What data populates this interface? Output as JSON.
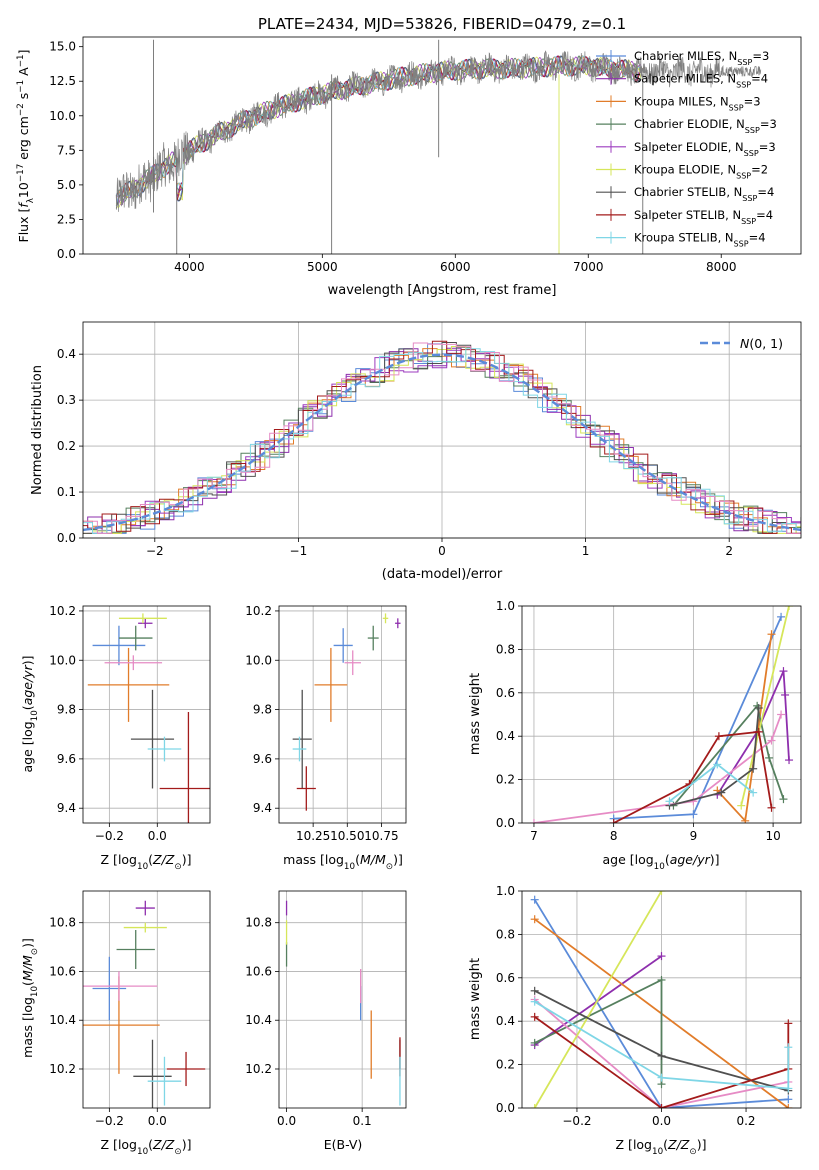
{
  "chart_data": [
    {
      "type": "line",
      "title": "PLATE=2434, MJD=53826, FIBERID=0479, z=0.1",
      "xlabel": "wavelength [Angstrom, rest frame]",
      "ylabel": "Flux [f_λ 10^-17 erg cm^-2 s^-1 A^-1]",
      "xlim": [
        3200,
        8600
      ],
      "ylim": [
        0,
        15.7
      ],
      "xticks": [
        4000,
        5000,
        6000,
        7000,
        8000
      ],
      "yticks": [
        0.0,
        2.5,
        5.0,
        7.5,
        10.0,
        12.5,
        15.0
      ],
      "legend_position": "upper right",
      "spectrum_shape": {
        "x": [
          3450,
          3600,
          3800,
          4000,
          4200,
          4400,
          4600,
          4800,
          5000,
          5200,
          5400,
          5600,
          5800,
          6000,
          6200,
          6400,
          6600,
          6800,
          7000,
          7200,
          7400
        ],
        "y": [
          4.0,
          4.8,
          6.2,
          7.5,
          8.6,
          9.6,
          10.4,
          11.0,
          11.6,
          12.0,
          12.4,
          12.8,
          13.1,
          13.3,
          13.4,
          13.4,
          13.5,
          13.6,
          13.6,
          13.4,
          13.2
        ]
      },
      "data_spectrum_color": "#808080",
      "series": [
        {
          "name": "Chabrier MILES, N_SSP=3",
          "color": "#5b8bd9"
        },
        {
          "name": "Salpeter MILES, N_SSP=4",
          "color": "#8e2fad"
        },
        {
          "name": "Kroupa MILES, N_SSP=3",
          "color": "#e17c2a"
        },
        {
          "name": "Chabrier ELODIE, N_SSP=3",
          "color": "#56805f"
        },
        {
          "name": "Salpeter ELODIE, N_SSP=3",
          "color": "#9c3bbf"
        },
        {
          "name": "Kroupa ELODIE, N_SSP=2",
          "color": "#d6e65a"
        },
        {
          "name": "Chabrier STELIB, N_SSP=4",
          "color": "#505050"
        },
        {
          "name": "Salpeter STELIB, N_SSP=4",
          "color": "#a31b1b"
        },
        {
          "name": "Kroupa STELIB, N_SSP=4",
          "color": "#7fd6e6"
        }
      ]
    },
    {
      "type": "line",
      "xlabel": "(data-model)/error",
      "ylabel": "Normed distribution",
      "xlim": [
        -2.5,
        2.5
      ],
      "ylim": [
        0,
        0.47
      ],
      "xticks": [
        -2,
        -1,
        0,
        1,
        2
      ],
      "yticks": [
        0.0,
        0.1,
        0.2,
        0.3,
        0.4
      ],
      "grid": true,
      "legend_position": "upper right",
      "legend": "N(0,1)",
      "gaussian_color": "#5b8bd9"
    },
    {
      "type": "scatter",
      "xlabel": "Z [log10(Z/Z⊙)]",
      "ylabel": "age  [log10(age/yr)]",
      "xlim": [
        -0.31,
        0.22
      ],
      "ylim": [
        9.34,
        10.22
      ],
      "xticks": [
        -0.2,
        0.0
      ],
      "yticks": [
        9.4,
        9.6,
        9.8,
        10.0,
        10.2
      ],
      "grid": true,
      "points": [
        {
          "x": -0.16,
          "xerr": 0.11,
          "y": 10.06,
          "yerr": 0.08,
          "color": "#5b8bd9"
        },
        {
          "x": -0.05,
          "xerr": 0.03,
          "y": 10.15,
          "yerr": 0.02,
          "color": "#8e2fad"
        },
        {
          "x": -0.12,
          "xerr": 0.17,
          "y": 9.9,
          "yerr": 0.15,
          "color": "#e17c2a"
        },
        {
          "x": -0.09,
          "xerr": 0.07,
          "y": 10.09,
          "yerr": 0.05,
          "color": "#56805f"
        },
        {
          "x": -0.1,
          "xerr": 0.12,
          "y": 9.99,
          "yerr": 0.03,
          "color": "#e68bc5"
        },
        {
          "x": -0.06,
          "xerr": 0.1,
          "y": 10.17,
          "yerr": 0.02,
          "color": "#d6e65a"
        },
        {
          "x": -0.02,
          "xerr": 0.09,
          "y": 9.68,
          "yerr": 0.2,
          "color": "#505050"
        },
        {
          "x": 0.13,
          "xerr": 0.12,
          "y": 9.48,
          "yerr": 0.31,
          "color": "#a31b1b"
        },
        {
          "x": 0.03,
          "xerr": 0.07,
          "y": 9.64,
          "yerr": 0.05,
          "color": "#7fd6e6"
        }
      ]
    },
    {
      "type": "scatter",
      "xlabel": "mass [log10(M/M⊙)]",
      "xlim": [
        10.0,
        10.93
      ],
      "ylim": [
        9.34,
        10.22
      ],
      "xticks": [
        10.25,
        10.5,
        10.75
      ],
      "yticks": [
        9.4,
        9.6,
        9.8,
        10.0,
        10.2
      ],
      "grid": true,
      "points": [
        {
          "x": 10.47,
          "xerr": 0.07,
          "y": 10.06,
          "yerr": 0.07,
          "color": "#5b8bd9"
        },
        {
          "x": 10.87,
          "xerr": 0.02,
          "y": 10.15,
          "yerr": 0.02,
          "color": "#8e2fad"
        },
        {
          "x": 10.38,
          "xerr": 0.12,
          "y": 9.9,
          "yerr": 0.15,
          "color": "#e17c2a"
        },
        {
          "x": 10.69,
          "xerr": 0.04,
          "y": 10.09,
          "yerr": 0.05,
          "color": "#56805f"
        },
        {
          "x": 10.54,
          "xerr": 0.06,
          "y": 9.99,
          "yerr": 0.05,
          "color": "#e68bc5"
        },
        {
          "x": 10.78,
          "xerr": 0.02,
          "y": 10.17,
          "yerr": 0.02,
          "color": "#d6e65a"
        },
        {
          "x": 10.17,
          "xerr": 0.07,
          "y": 9.68,
          "yerr": 0.2,
          "color": "#505050"
        },
        {
          "x": 10.2,
          "xerr": 0.07,
          "y": 9.48,
          "yerr": 0.09,
          "color": "#a31b1b"
        },
        {
          "x": 10.15,
          "xerr": 0.05,
          "y": 9.64,
          "yerr": 0.05,
          "color": "#7fd6e6"
        }
      ]
    },
    {
      "type": "line",
      "xlabel": "age  [log10(age/yr)]",
      "ylabel": "mass weight",
      "xlim": [
        6.85,
        10.35
      ],
      "ylim": [
        0,
        1.0
      ],
      "xticks": [
        7,
        8,
        9,
        10
      ],
      "yticks": [
        0.0,
        0.2,
        0.4,
        0.6,
        0.8,
        1.0
      ],
      "grid": true,
      "series": [
        {
          "color": "#5b8bd9",
          "x": [
            8.0,
            9.0,
            10.1
          ],
          "y": [
            0.02,
            0.04,
            0.95
          ]
        },
        {
          "color": "#8e2fad",
          "x": [
            9.3,
            9.8,
            10.13,
            10.15,
            10.2
          ],
          "y": [
            0.13,
            0.42,
            0.7,
            0.59,
            0.29
          ]
        },
        {
          "color": "#e17c2a",
          "x": [
            9.3,
            9.65,
            9.98
          ],
          "y": [
            0.15,
            0.01,
            0.87
          ]
        },
        {
          "color": "#56805f",
          "x": [
            8.75,
            9.8,
            9.95,
            10.13
          ],
          "y": [
            0.08,
            0.54,
            0.3,
            0.11
          ]
        },
        {
          "color": "#e68bc5",
          "x": [
            7.0,
            9.0,
            9.98,
            10.1
          ],
          "y": [
            0.0,
            0.1,
            0.38,
            0.5
          ]
        },
        {
          "color": "#d6e65a",
          "x": [
            9.6,
            10.2
          ],
          "y": [
            0.08,
            1.0
          ]
        },
        {
          "color": "#505050",
          "x": [
            8.7,
            9.35,
            9.75,
            9.82
          ],
          "y": [
            0.08,
            0.14,
            0.25,
            0.53
          ]
        },
        {
          "color": "#a31b1b",
          "x": [
            8.0,
            8.95,
            9.32,
            9.82,
            9.98
          ],
          "y": [
            0.0,
            0.18,
            0.4,
            0.42,
            0.07
          ]
        },
        {
          "color": "#7fd6e6",
          "x": [
            8.7,
            9.3,
            9.75
          ],
          "y": [
            0.1,
            0.27,
            0.14
          ]
        }
      ]
    },
    {
      "type": "scatter",
      "xlabel": "Z [log10(Z/Z⊙)]",
      "ylabel": "mass [log10(M/M⊙)]",
      "xlim": [
        -0.31,
        0.22
      ],
      "ylim": [
        10.04,
        10.93
      ],
      "xticks": [
        -0.2,
        0.0
      ],
      "yticks": [
        10.2,
        10.4,
        10.6,
        10.8
      ],
      "grid": true,
      "points": [
        {
          "x": -0.2,
          "xerr": 0.07,
          "y": 10.53,
          "yerr": 0.13,
          "color": "#5b8bd9"
        },
        {
          "x": -0.05,
          "xerr": 0.04,
          "y": 10.86,
          "yerr": 0.03,
          "color": "#8e2fad"
        },
        {
          "x": -0.16,
          "xerr": 0.17,
          "y": 10.38,
          "yerr": 0.2,
          "color": "#e17c2a"
        },
        {
          "x": -0.09,
          "xerr": 0.08,
          "y": 10.69,
          "yerr": 0.08,
          "color": "#56805f"
        },
        {
          "x": -0.16,
          "xerr": 0.16,
          "y": 10.54,
          "yerr": 0.06,
          "color": "#e68bc5"
        },
        {
          "x": -0.05,
          "xerr": 0.09,
          "y": 10.78,
          "yerr": 0.02,
          "color": "#d6e65a"
        },
        {
          "x": -0.02,
          "xerr": 0.08,
          "y": 10.17,
          "yerr": 0.15,
          "color": "#505050"
        },
        {
          "x": 0.12,
          "xerr": 0.08,
          "y": 10.2,
          "yerr": 0.07,
          "color": "#a31b1b"
        },
        {
          "x": 0.03,
          "xerr": 0.07,
          "y": 10.15,
          "yerr": 0.1,
          "color": "#7fd6e6"
        }
      ]
    },
    {
      "type": "scatter",
      "xlabel": "E(B-V)",
      "xlim": [
        -0.01,
        0.158
      ],
      "ylim": [
        10.04,
        10.93
      ],
      "xticks": [
        0.0,
        0.1
      ],
      "yticks": [
        10.2,
        10.4,
        10.6,
        10.8
      ],
      "grid": true,
      "points": [
        {
          "x": 0.098,
          "y": 10.47,
          "yerr": 0.07,
          "color": "#5b8bd9"
        },
        {
          "x": 0.0,
          "y": 10.86,
          "yerr": 0.03,
          "color": "#8e2fad"
        },
        {
          "x": 0.112,
          "y": 10.3,
          "yerr": 0.14,
          "color": "#e17c2a"
        },
        {
          "x": 0.0,
          "y": 10.67,
          "yerr": 0.05,
          "color": "#56805f"
        },
        {
          "x": 0.098,
          "y": 10.54,
          "yerr": 0.07,
          "color": "#e68bc5"
        },
        {
          "x": 0.0,
          "y": 10.76,
          "yerr": 0.05,
          "color": "#d6e65a"
        },
        {
          "x": 0.15,
          "y": 10.26,
          "yerr": 0.06,
          "color": "#505050"
        },
        {
          "x": 0.15,
          "y": 10.25,
          "yerr": 0.08,
          "color": "#a31b1b"
        },
        {
          "x": 0.15,
          "y": 10.15,
          "yerr": 0.1,
          "color": "#7fd6e6"
        }
      ]
    },
    {
      "type": "line",
      "xlabel": "Z [log10(Z/Z⊙)]",
      "ylabel": "mass weight",
      "xlim": [
        -0.33,
        0.33
      ],
      "ylim": [
        0,
        1.0
      ],
      "xticks": [
        -0.2,
        0.0,
        0.2
      ],
      "yticks": [
        0.0,
        0.2,
        0.4,
        0.6,
        0.8,
        1.0
      ],
      "grid": true,
      "series": [
        {
          "color": "#5b8bd9",
          "x": [
            -0.3,
            0.0,
            0.3
          ],
          "y": [
            0.96,
            0.0,
            0.04
          ]
        },
        {
          "color": "#8e2fad",
          "x": [
            -0.3,
            0.0
          ],
          "y": [
            0.29,
            0.7
          ]
        },
        {
          "color": "#e17c2a",
          "x": [
            -0.3,
            0.3
          ],
          "y": [
            0.87,
            0.0
          ]
        },
        {
          "color": "#56805f",
          "x": [
            -0.3,
            0.0,
            0.0
          ],
          "y": [
            0.3,
            0.59,
            0.11
          ]
        },
        {
          "color": "#e68bc5",
          "x": [
            -0.3,
            0.0,
            0.3
          ],
          "y": [
            0.5,
            0.0,
            0.12
          ]
        },
        {
          "color": "#d6e65a",
          "x": [
            -0.3,
            0.0
          ],
          "y": [
            0.0,
            1.0
          ]
        },
        {
          "color": "#505050",
          "x": [
            -0.3,
            0.0,
            0.3
          ],
          "y": [
            0.54,
            0.24,
            0.08
          ]
        },
        {
          "color": "#a31b1b",
          "x": [
            -0.3,
            0.0,
            0.3,
            0.3
          ],
          "y": [
            0.42,
            0.0,
            0.18,
            0.39
          ]
        },
        {
          "color": "#7fd6e6",
          "x": [
            -0.3,
            0.0,
            0.3,
            0.3
          ],
          "y": [
            0.49,
            0.14,
            0.09,
            0.28
          ]
        }
      ]
    }
  ]
}
